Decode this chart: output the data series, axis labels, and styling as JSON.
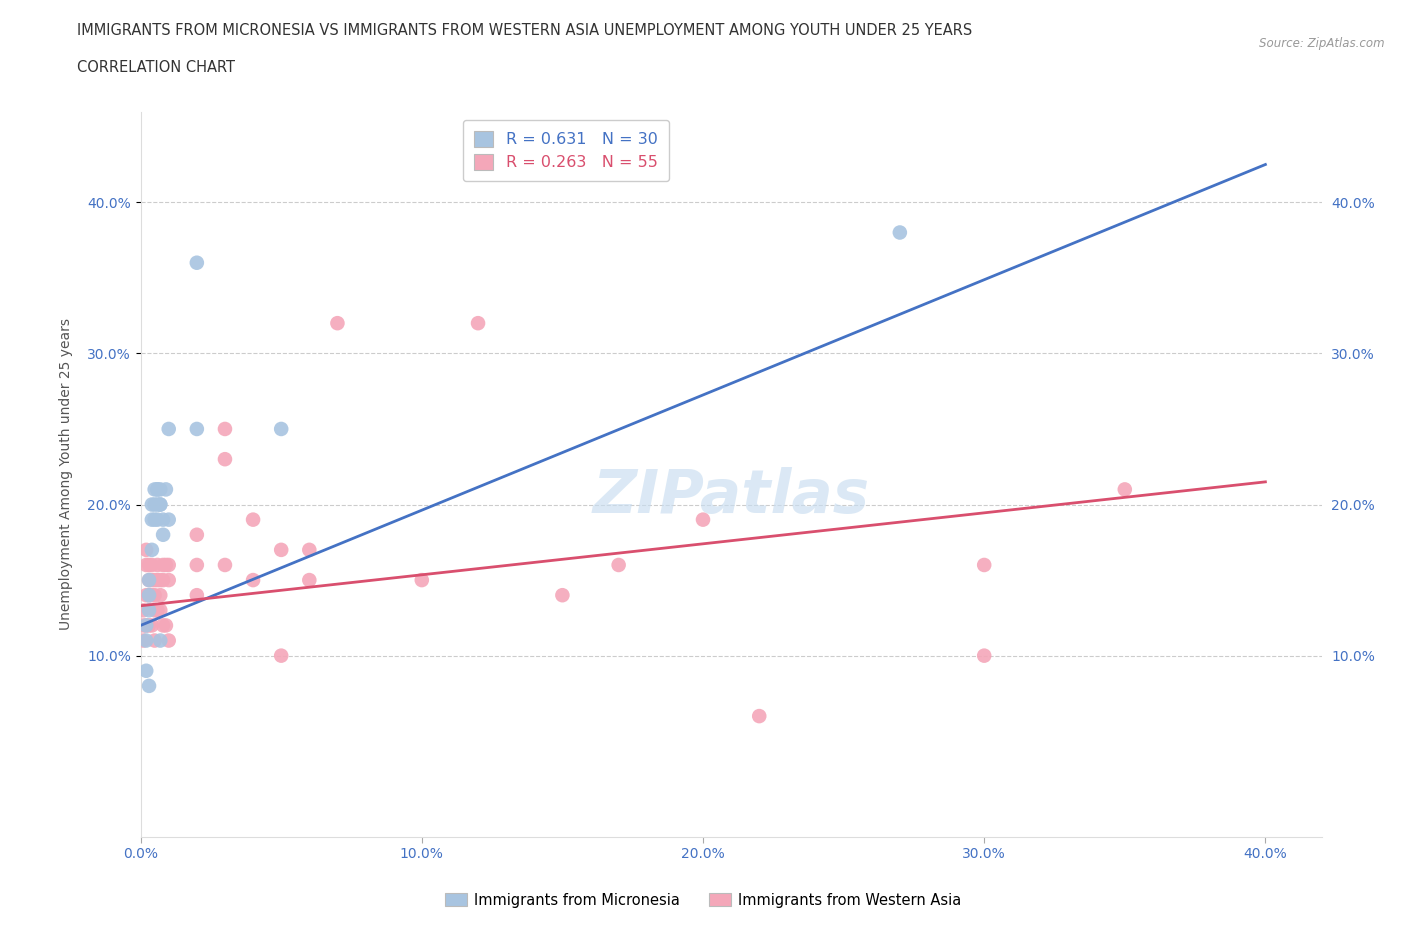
{
  "title_line1": "IMMIGRANTS FROM MICRONESIA VS IMMIGRANTS FROM WESTERN ASIA UNEMPLOYMENT AMONG YOUTH UNDER 25 YEARS",
  "title_line2": "CORRELATION CHART",
  "source": "Source: ZipAtlas.com",
  "ylabel": "Unemployment Among Youth under 25 years",
  "xlim": [
    0.0,
    0.42
  ],
  "ylim": [
    -0.02,
    0.46
  ],
  "xtick_labels": [
    "0.0%",
    "10.0%",
    "20.0%",
    "30.0%",
    "40.0%"
  ],
  "xtick_vals": [
    0.0,
    0.1,
    0.2,
    0.3,
    0.4
  ],
  "ytick_labels": [
    "10.0%",
    "20.0%",
    "30.0%",
    "40.0%"
  ],
  "ytick_vals": [
    0.1,
    0.2,
    0.3,
    0.4
  ],
  "micronesia_R": 0.631,
  "micronesia_N": 30,
  "western_asia_R": 0.263,
  "western_asia_N": 55,
  "micronesia_color": "#a8c4e0",
  "micronesia_line_color": "#4472c4",
  "western_asia_color": "#f4a7b9",
  "western_asia_line_color": "#d94f6e",
  "micronesia_x": [
    0.002,
    0.002,
    0.002,
    0.003,
    0.003,
    0.003,
    0.003,
    0.004,
    0.004,
    0.004,
    0.005,
    0.005,
    0.005,
    0.006,
    0.006,
    0.006,
    0.006,
    0.007,
    0.007,
    0.007,
    0.007,
    0.008,
    0.008,
    0.009,
    0.01,
    0.01,
    0.02,
    0.02,
    0.05,
    0.27
  ],
  "micronesia_y": [
    0.12,
    0.11,
    0.09,
    0.15,
    0.14,
    0.13,
    0.08,
    0.2,
    0.19,
    0.17,
    0.21,
    0.2,
    0.19,
    0.21,
    0.21,
    0.2,
    0.19,
    0.21,
    0.2,
    0.2,
    0.11,
    0.19,
    0.18,
    0.21,
    0.19,
    0.25,
    0.36,
    0.25,
    0.25,
    0.38
  ],
  "western_asia_x": [
    0.001,
    0.001,
    0.001,
    0.002,
    0.002,
    0.002,
    0.002,
    0.003,
    0.003,
    0.003,
    0.003,
    0.004,
    0.004,
    0.004,
    0.004,
    0.005,
    0.005,
    0.005,
    0.005,
    0.006,
    0.006,
    0.006,
    0.007,
    0.007,
    0.007,
    0.008,
    0.008,
    0.008,
    0.009,
    0.009,
    0.01,
    0.01,
    0.01,
    0.02,
    0.02,
    0.02,
    0.03,
    0.03,
    0.03,
    0.04,
    0.04,
    0.05,
    0.05,
    0.06,
    0.06,
    0.07,
    0.1,
    0.12,
    0.15,
    0.17,
    0.2,
    0.22,
    0.3,
    0.3,
    0.35
  ],
  "western_asia_y": [
    0.13,
    0.12,
    0.11,
    0.17,
    0.16,
    0.14,
    0.12,
    0.16,
    0.15,
    0.14,
    0.12,
    0.16,
    0.15,
    0.14,
    0.12,
    0.15,
    0.14,
    0.13,
    0.11,
    0.16,
    0.15,
    0.13,
    0.15,
    0.14,
    0.13,
    0.16,
    0.15,
    0.12,
    0.16,
    0.12,
    0.16,
    0.15,
    0.11,
    0.18,
    0.16,
    0.14,
    0.25,
    0.23,
    0.16,
    0.19,
    0.15,
    0.17,
    0.1,
    0.17,
    0.15,
    0.32,
    0.15,
    0.32,
    0.14,
    0.16,
    0.19,
    0.06,
    0.16,
    0.1,
    0.21
  ],
  "blue_line_x0": 0.0,
  "blue_line_y0": 0.12,
  "blue_line_x1": 0.4,
  "blue_line_y1": 0.425,
  "pink_line_x0": 0.0,
  "pink_line_y0": 0.133,
  "pink_line_x1": 0.4,
  "pink_line_y1": 0.215,
  "watermark": "ZIPatlas",
  "background_color": "#ffffff",
  "grid_color": "#cccccc"
}
